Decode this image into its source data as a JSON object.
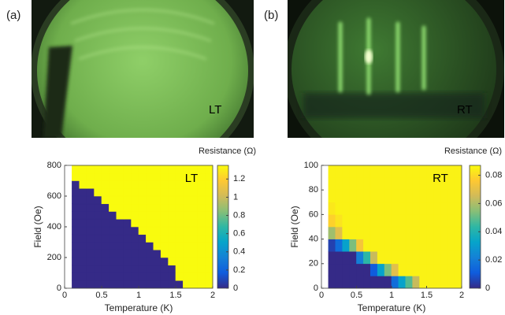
{
  "chart_data": [
    {
      "type": "heatmap",
      "panel_label": "(a)",
      "image_label": "LT",
      "annotation": "LT",
      "xlabel": "Temperature (K)",
      "ylabel": "Field (Oe)",
      "colorbar_label": "Resistance (Ω)",
      "xlim": [
        0,
        2
      ],
      "xticks": [
        0,
        0.5,
        1,
        1.5,
        2
      ],
      "ylim": [
        0,
        800
      ],
      "yticks": [
        0,
        200,
        400,
        600,
        800
      ],
      "clim": [
        0,
        1.35
      ],
      "cticks": [
        0,
        0.2,
        0.4,
        0.6,
        0.8,
        1,
        1.2
      ],
      "colormap": [
        "#352a87",
        "#0f5cdd",
        "#1481d6",
        "#06a4ca",
        "#2eb7a4",
        "#87bf77",
        "#d1bb59",
        "#fec832",
        "#f9fb0e"
      ],
      "x": [
        0.1,
        0.2,
        0.3,
        0.4,
        0.5,
        0.6,
        0.7,
        0.8,
        0.9,
        1.0,
        1.1,
        1.2,
        1.3,
        1.4,
        1.5,
        1.6,
        1.7,
        1.8,
        1.9,
        2.0
      ],
      "y": [
        0,
        50,
        100,
        150,
        200,
        250,
        300,
        350,
        400,
        450,
        500,
        550,
        600,
        650,
        700,
        750,
        800
      ],
      "z": [
        [
          0,
          0,
          0,
          0,
          0,
          0,
          0,
          0,
          0,
          0,
          0,
          0,
          0,
          0,
          0,
          1.35,
          1.35,
          1.35,
          1.35
        ],
        [
          0,
          0,
          0,
          0,
          0,
          0,
          0,
          0,
          0,
          0,
          0,
          0,
          0,
          0,
          1.35,
          1.35,
          1.35,
          1.35,
          1.35
        ],
        [
          0,
          0,
          0,
          0,
          0,
          0,
          0,
          0,
          0,
          0,
          0,
          0,
          0,
          0,
          1.35,
          1.35,
          1.35,
          1.35,
          1.35
        ],
        [
          0,
          0,
          0,
          0,
          0,
          0,
          0,
          0,
          0,
          0,
          0,
          0,
          0,
          1.35,
          1.35,
          1.35,
          1.35,
          1.35,
          1.35
        ],
        [
          0,
          0,
          0,
          0,
          0,
          0,
          0,
          0,
          0,
          0,
          0,
          0,
          1.35,
          1.35,
          1.35,
          1.35,
          1.35,
          1.35,
          1.35
        ],
        [
          0,
          0,
          0,
          0,
          0,
          0,
          0,
          0,
          0,
          0,
          0,
          1.35,
          1.35,
          1.35,
          1.35,
          1.35,
          1.35,
          1.35,
          1.35
        ],
        [
          0,
          0,
          0,
          0,
          0,
          0,
          0,
          0,
          0,
          0,
          1.35,
          1.35,
          1.35,
          1.35,
          1.35,
          1.35,
          1.35,
          1.35,
          1.35
        ],
        [
          0,
          0,
          0,
          0,
          0,
          0,
          0,
          0,
          0,
          1.35,
          1.35,
          1.35,
          1.35,
          1.35,
          1.35,
          1.35,
          1.35,
          1.35,
          1.35
        ],
        [
          0,
          0,
          0,
          0,
          0,
          0,
          0,
          0,
          1.35,
          1.35,
          1.35,
          1.35,
          1.35,
          1.35,
          1.35,
          1.35,
          1.35,
          1.35,
          1.35
        ],
        [
          0,
          0,
          0,
          0,
          0,
          0,
          1.35,
          1.35,
          1.35,
          1.35,
          1.35,
          1.35,
          1.35,
          1.35,
          1.35,
          1.35,
          1.35,
          1.35,
          1.35
        ],
        [
          0,
          0,
          0,
          0,
          0,
          1.35,
          1.35,
          1.35,
          1.35,
          1.35,
          1.35,
          1.35,
          1.35,
          1.35,
          1.35,
          1.35,
          1.35,
          1.35,
          1.35
        ],
        [
          0,
          0,
          0,
          0,
          1.35,
          1.35,
          1.35,
          1.35,
          1.35,
          1.35,
          1.35,
          1.35,
          1.35,
          1.35,
          1.35,
          1.35,
          1.35,
          1.35,
          1.35
        ],
        [
          0,
          0,
          0,
          1.35,
          1.35,
          1.35,
          1.35,
          1.35,
          1.35,
          1.35,
          1.35,
          1.35,
          1.35,
          1.35,
          1.35,
          1.35,
          1.35,
          1.35,
          1.35
        ],
        [
          0,
          1.35,
          1.35,
          1.35,
          1.35,
          1.35,
          1.35,
          1.35,
          1.35,
          1.35,
          1.35,
          1.35,
          1.35,
          1.35,
          1.35,
          1.35,
          1.35,
          1.35,
          1.35
        ],
        [
          1.35,
          1.35,
          1.35,
          1.35,
          1.35,
          1.35,
          1.35,
          1.35,
          1.35,
          1.35,
          1.35,
          1.35,
          1.35,
          1.35,
          1.35,
          1.35,
          1.35,
          1.35,
          1.35
        ],
        [
          1.35,
          1.35,
          1.35,
          1.35,
          1.35,
          1.35,
          1.35,
          1.35,
          1.35,
          1.35,
          1.35,
          1.35,
          1.35,
          1.35,
          1.35,
          1.35,
          1.35,
          1.35,
          1.35
        ]
      ]
    },
    {
      "type": "heatmap",
      "panel_label": "(b)",
      "image_label": "RT",
      "annotation": "RT",
      "xlabel": "Temperature (K)",
      "ylabel": "Field (Oe)",
      "colorbar_label": "Resistance (Ω)",
      "xlim": [
        0,
        2
      ],
      "xticks": [
        0,
        0.5,
        1,
        1.5,
        2
      ],
      "ylim": [
        0,
        100
      ],
      "yticks": [
        0,
        20,
        40,
        60,
        80,
        100
      ],
      "clim": [
        0,
        0.087
      ],
      "cticks": [
        0,
        0.02,
        0.04,
        0.06,
        0.08
      ],
      "colormap": [
        "#352a87",
        "#0f5cdd",
        "#1481d6",
        "#06a4ca",
        "#2eb7a4",
        "#87bf77",
        "#d1bb59",
        "#fec832",
        "#f9fb0e"
      ],
      "x": [
        0.1,
        0.2,
        0.3,
        0.4,
        0.5,
        0.6,
        0.7,
        0.8,
        0.9,
        1.0,
        1.1,
        1.2,
        1.3,
        1.4,
        1.5,
        1.6,
        1.7,
        1.8,
        1.9,
        2.0
      ],
      "y": [
        0,
        10,
        20,
        30,
        40,
        50,
        60,
        70,
        80,
        90,
        100
      ],
      "z": [
        [
          0,
          0,
          0,
          0,
          0,
          0,
          0,
          0,
          0,
          0.016,
          0.032,
          0.048,
          0.064,
          0.085,
          0.085,
          0.085,
          0.085,
          0.085,
          0.085
        ],
        [
          0,
          0,
          0,
          0,
          0,
          0,
          0.011,
          0.032,
          0.053,
          0.069,
          0.085,
          0.085,
          0.085,
          0.085,
          0.085,
          0.085,
          0.085,
          0.085,
          0.085
        ],
        [
          0,
          0,
          0,
          0,
          0.021,
          0.043,
          0.064,
          0.085,
          0.085,
          0.085,
          0.085,
          0.085,
          0.085,
          0.085,
          0.085,
          0.085,
          0.085,
          0.085,
          0.085
        ],
        [
          0.005,
          0.016,
          0.032,
          0.053,
          0.074,
          0.085,
          0.085,
          0.085,
          0.085,
          0.085,
          0.085,
          0.085,
          0.085,
          0.085,
          0.085,
          0.085,
          0.085,
          0.085,
          0.085
        ],
        [
          0.058,
          0.069,
          0.085,
          0.085,
          0.085,
          0.085,
          0.085,
          0.085,
          0.085,
          0.085,
          0.085,
          0.085,
          0.085,
          0.085,
          0.085,
          0.085,
          0.085,
          0.085,
          0.085
        ],
        [
          0.078,
          0.082,
          0.085,
          0.085,
          0.085,
          0.085,
          0.085,
          0.085,
          0.085,
          0.085,
          0.085,
          0.085,
          0.085,
          0.085,
          0.085,
          0.085,
          0.085,
          0.085,
          0.085
        ],
        [
          0.083,
          0.085,
          0.085,
          0.085,
          0.085,
          0.085,
          0.085,
          0.085,
          0.085,
          0.085,
          0.085,
          0.085,
          0.085,
          0.085,
          0.085,
          0.085,
          0.085,
          0.085,
          0.085
        ],
        [
          0.085,
          0.085,
          0.085,
          0.085,
          0.085,
          0.085,
          0.085,
          0.085,
          0.085,
          0.085,
          0.085,
          0.085,
          0.085,
          0.085,
          0.085,
          0.085,
          0.085,
          0.085,
          0.085
        ],
        [
          0.085,
          0.085,
          0.085,
          0.085,
          0.085,
          0.085,
          0.085,
          0.085,
          0.085,
          0.085,
          0.085,
          0.085,
          0.085,
          0.085,
          0.085,
          0.085,
          0.085,
          0.085,
          0.085
        ],
        [
          0.085,
          0.085,
          0.085,
          0.085,
          0.085,
          0.085,
          0.085,
          0.085,
          0.085,
          0.085,
          0.085,
          0.085,
          0.085,
          0.085,
          0.085,
          0.085,
          0.085,
          0.085,
          0.085
        ]
      ]
    }
  ]
}
